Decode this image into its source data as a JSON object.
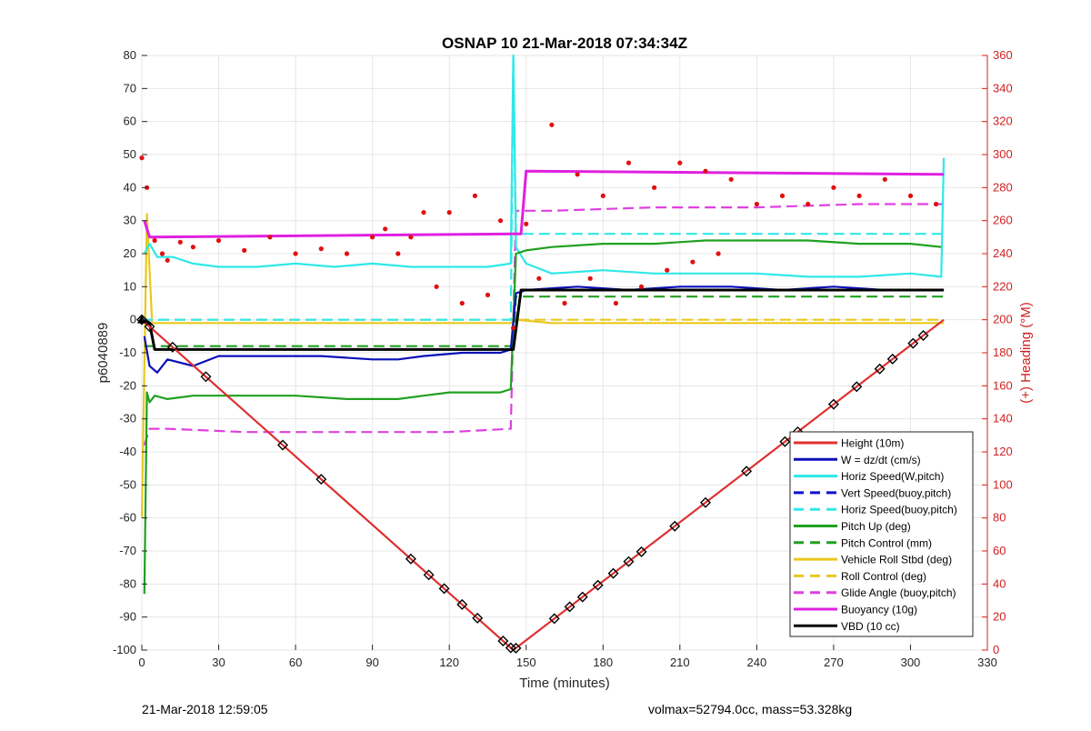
{
  "chart_data": {
    "type": "line",
    "title": "OSNAP 10 21-Mar-2018 07:34:34Z",
    "xlabel": "Time (minutes)",
    "ylabel": "p6040889",
    "y2label": "(+) Heading (°M)",
    "xlim": [
      0,
      330
    ],
    "ylim": [
      -100,
      80
    ],
    "y2lim": [
      0,
      360
    ],
    "xticks": [
      "0",
      "30",
      "60",
      "90",
      "120",
      "150",
      "180",
      "210",
      "240",
      "270",
      "300",
      "330"
    ],
    "yticks": [
      "-100",
      "-90",
      "-80",
      "-70",
      "-60",
      "-50",
      "-40",
      "-30",
      "-20",
      "-10",
      "0",
      "10",
      "20",
      "30",
      "40",
      "50",
      "60",
      "70",
      "80"
    ],
    "y2ticks": [
      "0",
      "20",
      "40",
      "60",
      "80",
      "100",
      "120",
      "140",
      "160",
      "180",
      "200",
      "220",
      "240",
      "260",
      "280",
      "300",
      "320",
      "340",
      "360"
    ],
    "grid": true,
    "legend_position": "bottom-right",
    "colors": {
      "height": "#e03030",
      "w": "#0a10b8",
      "horiz_w": "#30e8e8",
      "vert_buoy": "#0a10d0",
      "horiz_buoy": "#30e8e8",
      "pitch_up": "#20a020",
      "pitch_ctrl": "#20a020",
      "roll": "#e8c820",
      "roll_ctrl": "#e8c820",
      "glide": "#e040e0",
      "buoyancy": "#e020e0",
      "vbd": "#000000",
      "heading": "#e01010",
      "right_axis": "#d02020"
    },
    "series": [
      {
        "key": "height",
        "name": "Height (10m)",
        "style": "solid",
        "x": [
          0,
          145,
          313
        ],
        "y": [
          0,
          -100,
          0
        ]
      },
      {
        "key": "w",
        "name": "W = dz/dt (cm/s)",
        "style": "solid",
        "x": [
          1,
          3,
          6,
          10,
          20,
          30,
          50,
          70,
          90,
          100,
          110,
          125,
          140,
          144,
          146,
          150,
          170,
          190,
          210,
          230,
          250,
          270,
          290,
          305,
          313
        ],
        "y": [
          -5,
          -14,
          -16,
          -12,
          -14,
          -11,
          -11,
          -11,
          -12,
          -12,
          -11,
          -10,
          -10,
          -9,
          8,
          9,
          10,
          9,
          10,
          10,
          9,
          10,
          9,
          9,
          9
        ]
      },
      {
        "key": "horiz_w",
        "name": "Horiz Speed(W,pitch)",
        "style": "solid",
        "x": [
          1,
          3,
          6,
          12,
          20,
          30,
          45,
          60,
          75,
          90,
          105,
          120,
          135,
          144,
          145,
          146,
          150,
          160,
          180,
          200,
          220,
          240,
          260,
          280,
          300,
          312,
          313
        ],
        "y": [
          20,
          23,
          19,
          19,
          17,
          16,
          16,
          17,
          16,
          17,
          16,
          16,
          16,
          17,
          80,
          22,
          17,
          14,
          15,
          14,
          14,
          14,
          13,
          13,
          14,
          13,
          49
        ]
      },
      {
        "key": "vert_buoy",
        "name": "Vert Speed(buoy,pitch)",
        "style": "dashed",
        "x": [],
        "y": []
      },
      {
        "key": "horiz_buoy",
        "name": "Horiz Speed(buoy,pitch)",
        "style": "dashed",
        "x": [
          0,
          144,
          145,
          146,
          313
        ],
        "y": [
          0,
          0,
          80,
          26,
          26
        ]
      },
      {
        "key": "pitch_up",
        "name": "Pitch Up (deg)",
        "style": "solid",
        "x": [
          1,
          2,
          3,
          5,
          10,
          20,
          40,
          60,
          80,
          100,
          110,
          120,
          140,
          144,
          146,
          150,
          160,
          180,
          200,
          220,
          240,
          260,
          280,
          300,
          312
        ],
        "y": [
          -83,
          -22,
          -25,
          -23,
          -24,
          -23,
          -23,
          -23,
          -24,
          -24,
          -23,
          -22,
          -22,
          -21,
          20,
          21,
          22,
          23,
          23,
          24,
          24,
          24,
          23,
          23,
          22
        ]
      },
      {
        "key": "pitch_ctrl",
        "name": "Pitch Control (mm)",
        "style": "dashed",
        "x": [
          1,
          145,
          146,
          313
        ],
        "y": [
          -8,
          -8,
          7,
          7
        ]
      },
      {
        "key": "roll",
        "name": "Vehicle Roll Stbd (deg)",
        "style": "solid",
        "x": [
          0,
          2,
          4,
          8,
          20,
          40,
          60,
          80,
          100,
          120,
          140,
          144,
          146,
          160,
          180,
          200,
          220,
          240,
          260,
          280,
          300,
          313
        ],
        "y": [
          -60,
          32,
          -1,
          -1,
          -1,
          -1,
          -1,
          -1,
          -1,
          -1,
          -1,
          -1,
          0,
          -1,
          -1,
          -1,
          -1,
          -1,
          -1,
          -1,
          -1,
          -1
        ]
      },
      {
        "key": "roll_ctrl",
        "name": "Roll Control (deg)",
        "style": "dashed",
        "x": [
          0,
          145,
          146,
          313
        ],
        "y": [
          0,
          0,
          0,
          0
        ]
      },
      {
        "key": "glide",
        "name": "Glide Angle (buoy,pitch)",
        "style": "dashed",
        "x": [
          1,
          3,
          10,
          40,
          80,
          120,
          144,
          146,
          160,
          200,
          240,
          280,
          313
        ],
        "y": [
          -38,
          -33,
          -33,
          -34,
          -34,
          -34,
          -33,
          33,
          33,
          34,
          34,
          35,
          35
        ]
      },
      {
        "key": "buoyancy",
        "name": "Buoyancy (10g)",
        "style": "solid",
        "x": [
          1,
          3,
          145,
          148,
          150,
          313
        ],
        "y": [
          30,
          25,
          26,
          26,
          45,
          44
        ]
      },
      {
        "key": "vbd",
        "name": "VBD (10 cc)",
        "style": "solid",
        "x": [
          1,
          3,
          5,
          145,
          148,
          313
        ],
        "y": [
          0,
          -1,
          -9,
          -9,
          9,
          9
        ]
      }
    ],
    "heading": {
      "x": [
        0,
        2,
        5,
        8,
        10,
        15,
        20,
        30,
        40,
        50,
        60,
        70,
        80,
        90,
        95,
        100,
        105,
        110,
        115,
        120,
        125,
        130,
        135,
        140,
        145,
        150,
        155,
        160,
        165,
        170,
        175,
        180,
        185,
        190,
        195,
        200,
        205,
        210,
        215,
        220,
        225,
        230,
        240,
        250,
        260,
        270,
        280,
        290,
        300,
        310
      ],
      "y": [
        298,
        280,
        248,
        240,
        236,
        247,
        244,
        248,
        242,
        250,
        240,
        243,
        240,
        250,
        255,
        240,
        250,
        265,
        220,
        265,
        210,
        275,
        215,
        260,
        195,
        258,
        225,
        318,
        210,
        288,
        225,
        275,
        210,
        295,
        220,
        280,
        230,
        295,
        235,
        290,
        240,
        285,
        270,
        275,
        270,
        280,
        275,
        285,
        275,
        270
      ]
    },
    "axis_annotation_footer": {
      "left": "21-Mar-2018 12:59:05",
      "right": "volmax=52794.0cc, mass=53.328kg"
    }
  }
}
